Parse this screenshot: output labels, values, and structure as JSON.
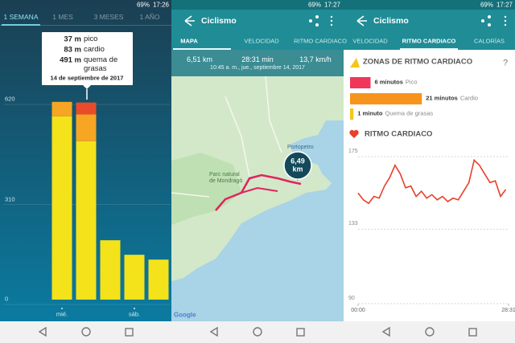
{
  "screens": [
    {
      "status_battery": "69%",
      "status_time": "17:26",
      "tabs": [
        "1 SEMANA",
        "1 MES",
        "3 MESES",
        "1 AÑO"
      ],
      "chart": {
        "type": "bar",
        "stacked": true,
        "categories": [
          "mié.",
          null,
          null,
          "sáb.",
          null
        ],
        "series": [
          {
            "color": "#f4e21a",
            "values": [
              568,
              491,
              184,
              139,
              124
            ]
          },
          {
            "color": "#f6a623",
            "values": [
              45,
              83,
              0,
              0,
              0
            ]
          },
          {
            "color": "#ea4b2b",
            "values": [
              0,
              37,
              0,
              0,
              0
            ]
          }
        ],
        "ylim": [
          0,
          620
        ],
        "yticks": [
          0,
          310,
          620
        ],
        "grid": true
      },
      "tooltip": {
        "rows": [
          {
            "amount": "37 m",
            "zone": "pico"
          },
          {
            "amount": "83 m",
            "zone": "cardio"
          },
          {
            "amount": "491 m",
            "zone": "quema de grasas"
          }
        ],
        "date": "14 de septiembre de 2017"
      }
    },
    {
      "status_battery": "69%",
      "status_time": "17:27",
      "title": "Ciclismo",
      "tabs": [
        "MAPA",
        "VELOCIDAD",
        "RITMO CARDIACO"
      ],
      "stats": [
        "6,51 km",
        "28:31 min",
        "13,7 km/h"
      ],
      "datetime": "10:45 a. m., jue., septiembre 14, 2017",
      "map": {
        "places": [
          "Parc natural de Mondragó",
          "Portopetro"
        ],
        "distance_bubble": "6,49 km",
        "attribution": "Google"
      }
    },
    {
      "status_battery": "69%",
      "status_time": "17:27",
      "title": "Ciclismo",
      "tabs": [
        "VELOCIDAD",
        "RITMO CARDIACO",
        "CALORÍAS"
      ],
      "zones_title": "ZONAS DE RITMO CARDIACO",
      "help": "?",
      "zones": [
        {
          "minutes": 6,
          "label": "6 minutos",
          "zone": "Pico",
          "color": "#f0365a"
        },
        {
          "minutes": 21,
          "label": "21 minutos",
          "zone": "Cardio",
          "color": "#f7941d"
        },
        {
          "minutes": 1,
          "label": "1 minuto",
          "zone": "Quema de grasas",
          "color": "#f5c518"
        }
      ],
      "heart_rate_title": "RITMO CARDIACO",
      "chart": {
        "type": "line",
        "color": "#e8402a",
        "x": [
          0,
          1,
          2,
          3,
          4,
          5,
          6,
          7,
          8,
          9,
          10,
          11,
          12,
          13,
          14,
          15,
          16,
          17,
          18,
          19,
          20,
          21,
          22,
          23,
          24,
          25,
          26,
          27,
          28
        ],
        "values": [
          154,
          150,
          148,
          152,
          151,
          158,
          163,
          170,
          165,
          157,
          158,
          152,
          155,
          151,
          153,
          150,
          152,
          149,
          151,
          150,
          155,
          160,
          173,
          170,
          165,
          160,
          161,
          152,
          156
        ],
        "xlim": [
          0,
          28.52
        ],
        "xticks": [
          {
            "value": 0,
            "label": "00:00"
          },
          {
            "value": 28.52,
            "label": "28:31"
          }
        ],
        "ylim": [
          90,
          175
        ],
        "yticks": [
          90,
          133,
          175
        ],
        "grid": true
      }
    }
  ]
}
